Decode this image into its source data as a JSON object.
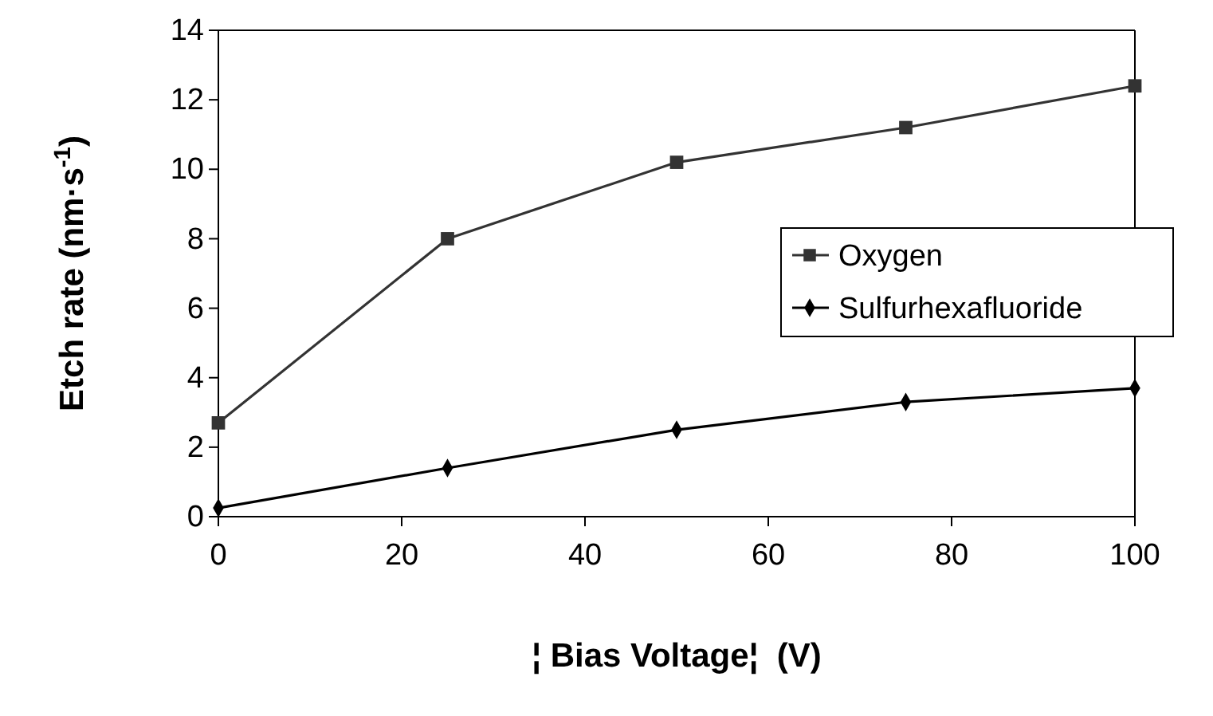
{
  "chart_data": {
    "type": "line",
    "xlabel": "¦ Bias Voltage¦  (V)",
    "ylabel": "Etch rate (nm·s$^{-1}$)",
    "x": [
      0,
      25,
      50,
      75,
      100
    ],
    "series": [
      {
        "name": "Oxygen",
        "color": "#333333",
        "marker": "square",
        "values": [
          2.7,
          8.0,
          10.2,
          11.2,
          12.4
        ]
      },
      {
        "name": "Sulfurhexafluoride",
        "color": "#000000",
        "marker": "diamond",
        "values": [
          0.25,
          1.4,
          2.5,
          3.3,
          3.7
        ]
      }
    ],
    "xlim": [
      0,
      100
    ],
    "xticks": [
      0,
      20,
      40,
      60,
      80,
      100
    ],
    "ylim": [
      0,
      14
    ],
    "yticks": [
      0,
      2,
      4,
      6,
      8,
      10,
      12,
      14
    ],
    "grid": false,
    "legend": "right",
    "line_style": "solid"
  }
}
